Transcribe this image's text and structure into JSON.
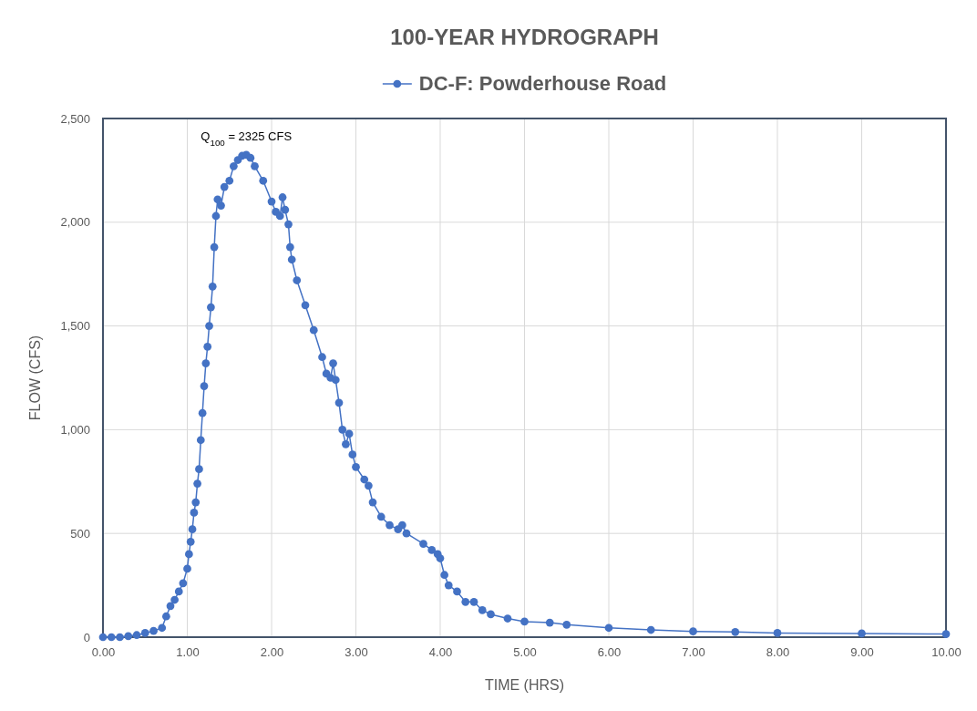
{
  "chart_data": {
    "type": "line",
    "title": "100-YEAR HYDROGRAPH",
    "xlabel": "TIME (HRS)",
    "ylabel": "FLOW (CFS)",
    "annotations": [
      {
        "text": "Q$_{100}$ = 2325 CFS",
        "x": 1.7,
        "y": 2325
      }
    ],
    "xlim": [
      0,
      10
    ],
    "ylim": [
      0,
      2500
    ],
    "xticks": [
      {
        "value": 0,
        "label": "0.00"
      },
      {
        "value": 1,
        "label": "1.00"
      },
      {
        "value": 2,
        "label": "2.00"
      },
      {
        "value": 3,
        "label": "3.00"
      },
      {
        "value": 4,
        "label": "4.00"
      },
      {
        "value": 5,
        "label": "5.00"
      },
      {
        "value": 6,
        "label": "6.00"
      },
      {
        "value": 7,
        "label": "7.00"
      },
      {
        "value": 8,
        "label": "8.00"
      },
      {
        "value": 9,
        "label": "9.00"
      },
      {
        "value": 10,
        "label": "10.00"
      }
    ],
    "yticks": [
      0,
      500,
      {
        "value": 1000,
        "label": "1,000"
      },
      {
        "value": 1500,
        "label": "1,500"
      },
      {
        "value": 2000,
        "label": "2,000"
      },
      {
        "value": 2500,
        "label": "2,500"
      }
    ],
    "grid": true,
    "legend": "top",
    "marker": "circle",
    "line_style": "solid",
    "series": [
      {
        "name": "DC-F: Powderhouse Road",
        "color": "#4472c4",
        "x": [
          0,
          0.1,
          0.2,
          0.3,
          0.4,
          0.5,
          0.6,
          0.7,
          0.75,
          0.8,
          0.85,
          0.9,
          0.95,
          1.0,
          1.02,
          1.04,
          1.06,
          1.08,
          1.1,
          1.12,
          1.14,
          1.16,
          1.18,
          1.2,
          1.22,
          1.24,
          1.26,
          1.28,
          1.3,
          1.32,
          1.34,
          1.36,
          1.4,
          1.44,
          1.5,
          1.55,
          1.6,
          1.65,
          1.7,
          1.75,
          1.8,
          1.9,
          2.0,
          2.05,
          2.1,
          2.13,
          2.16,
          2.2,
          2.22,
          2.24,
          2.3,
          2.4,
          2.5,
          2.6,
          2.65,
          2.7,
          2.73,
          2.76,
          2.8,
          2.84,
          2.88,
          2.92,
          2.96,
          3.0,
          3.1,
          3.15,
          3.2,
          3.3,
          3.4,
          3.5,
          3.55,
          3.6,
          3.8,
          3.9,
          3.97,
          4.0,
          4.05,
          4.1,
          4.2,
          4.3,
          4.4,
          4.5,
          4.6,
          4.8,
          5.0,
          5.3,
          5.5,
          6.0,
          6.5,
          7.0,
          7.5,
          8.0,
          9.0,
          10.0
        ],
        "values": [
          0,
          0,
          0,
          5,
          10,
          20,
          30,
          45,
          100,
          150,
          180,
          220,
          260,
          330,
          400,
          460,
          520,
          600,
          650,
          740,
          810,
          950,
          1080,
          1210,
          1320,
          1400,
          1500,
          1590,
          1690,
          1880,
          2030,
          2110,
          2080,
          2170,
          2200,
          2270,
          2300,
          2320,
          2325,
          2310,
          2270,
          2200,
          2100,
          2050,
          2030,
          2120,
          2060,
          1990,
          1880,
          1820,
          1720,
          1600,
          1480,
          1350,
          1270,
          1250,
          1320,
          1240,
          1130,
          1000,
          930,
          980,
          880,
          820,
          760,
          730,
          650,
          580,
          540,
          520,
          540,
          500,
          450,
          420,
          400,
          380,
          300,
          250,
          220,
          170,
          170,
          130,
          110,
          90,
          75,
          70,
          60,
          45,
          35,
          28,
          25,
          20,
          18,
          15
        ]
      }
    ]
  }
}
